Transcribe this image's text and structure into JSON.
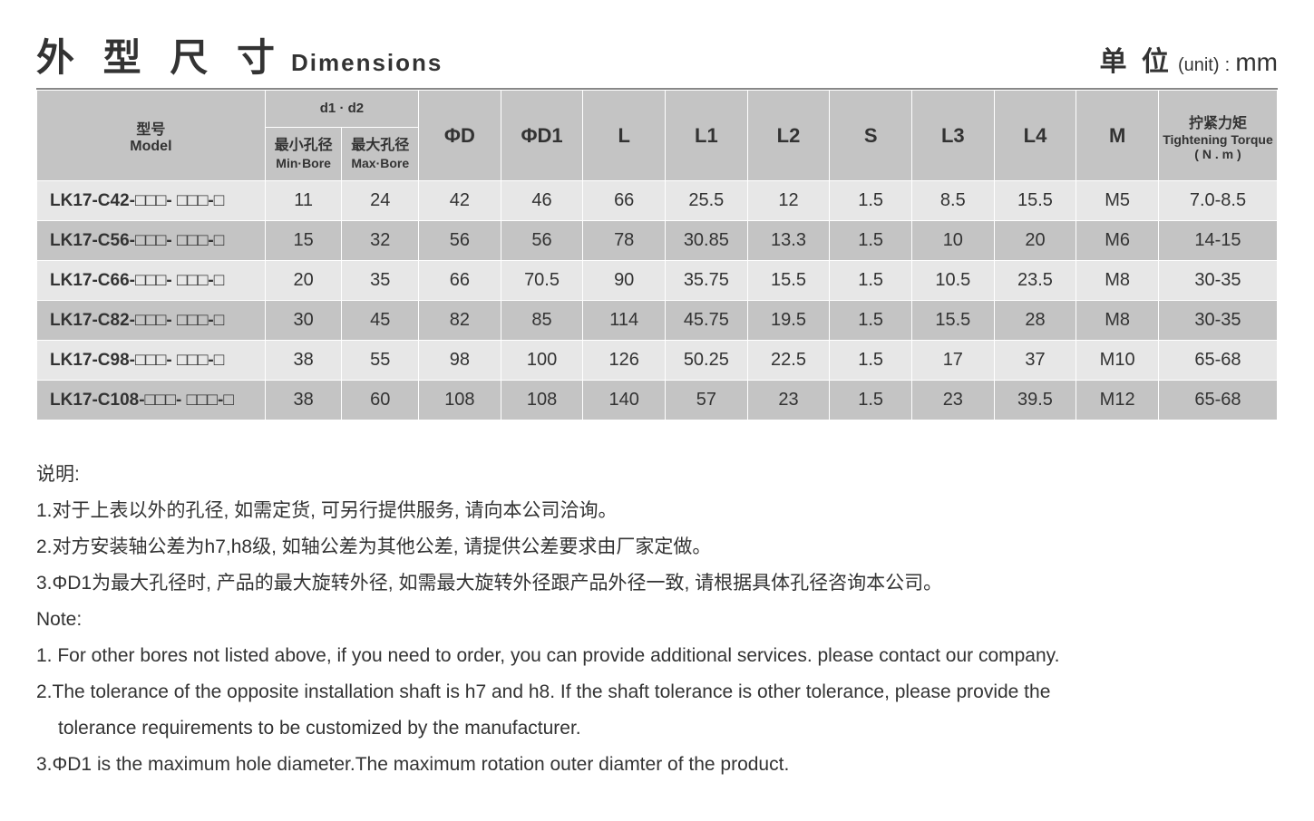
{
  "header": {
    "title_cn": "外 型 尺 寸",
    "title_en": "Dimensions",
    "unit_cn": "单 位",
    "unit_paren": "(unit)",
    "unit_colon": ":",
    "unit_mm": "mm"
  },
  "table": {
    "columns": {
      "model_cn": "型号",
      "model_en": "Model",
      "d1d2": "d1 · d2",
      "minbore_cn": "最小孔径",
      "minbore_en": "Min·Bore",
      "maxbore_cn": "最大孔径",
      "maxbore_en": "Max·Bore",
      "phiD": "ΦD",
      "phiD1": "ΦD1",
      "L": "L",
      "L1": "L1",
      "L2": "L2",
      "S": "S",
      "L3": "L3",
      "L4": "L4",
      "M": "M",
      "torque_cn": "拧紧力矩",
      "torque_en": "Tightening Torque",
      "torque_unit": "( N . m )"
    },
    "rows": [
      {
        "model": "LK17-C42-□□□- □□□-□",
        "min": "11",
        "max": "24",
        "phiD": "42",
        "phiD1": "46",
        "L": "66",
        "L1": "25.5",
        "L2": "12",
        "S": "1.5",
        "L3": "8.5",
        "L4": "15.5",
        "M": "M5",
        "torque": "7.0-8.5"
      },
      {
        "model": "LK17-C56-□□□- □□□-□",
        "min": "15",
        "max": "32",
        "phiD": "56",
        "phiD1": "56",
        "L": "78",
        "L1": "30.85",
        "L2": "13.3",
        "S": "1.5",
        "L3": "10",
        "L4": "20",
        "M": "M6",
        "torque": "14-15"
      },
      {
        "model": "LK17-C66-□□□- □□□-□",
        "min": "20",
        "max": "35",
        "phiD": "66",
        "phiD1": "70.5",
        "L": "90",
        "L1": "35.75",
        "L2": "15.5",
        "S": "1.5",
        "L3": "10.5",
        "L4": "23.5",
        "M": "M8",
        "torque": "30-35"
      },
      {
        "model": "LK17-C82-□□□- □□□-□",
        "min": "30",
        "max": "45",
        "phiD": "82",
        "phiD1": "85",
        "L": "114",
        "L1": "45.75",
        "L2": "19.5",
        "S": "1.5",
        "L3": "15.5",
        "L4": "28",
        "M": "M8",
        "torque": "30-35"
      },
      {
        "model": "LK17-C98-□□□- □□□-□",
        "min": "38",
        "max": "55",
        "phiD": "98",
        "phiD1": "100",
        "L": "126",
        "L1": "50.25",
        "L2": "22.5",
        "S": "1.5",
        "L3": "17",
        "L4": "37",
        "M": "M10",
        "torque": "65-68"
      },
      {
        "model": "LK17-C108-□□□- □□□-□",
        "min": "38",
        "max": "60",
        "phiD": "108",
        "phiD1": "108",
        "L": "140",
        "L1": "57",
        "L2": "23",
        "S": "1.5",
        "L3": "23",
        "L4": "39.5",
        "M": "M12",
        "torque": "65-68"
      }
    ]
  },
  "notes": {
    "label_cn": "说明:",
    "cn1": "1.对于上表以外的孔径, 如需定货, 可另行提供服务, 请向本公司洽询。",
    "cn2": "2.对方安装轴公差为h7,h8级, 如轴公差为其他公差, 请提供公差要求由厂家定做。",
    "cn3": "3.ΦD1为最大孔径时, 产品的最大旋转外径, 如需最大旋转外径跟产品外径一致, 请根据具体孔径咨询本公司。",
    "label_en": "Note:",
    "en1": "1. For other bores not listed above, if you need to order, you can provide additional services. please contact our company.",
    "en2a": "2.The tolerance of the opposite installation shaft is h7 and h8. If the shaft tolerance is other tolerance, please provide the",
    "en2b": "tolerance requirements to be customized by the manufacturer.",
    "en3": "3.ΦD1 is the maximum hole diameter.The maximum rotation outer diamter of the product."
  }
}
